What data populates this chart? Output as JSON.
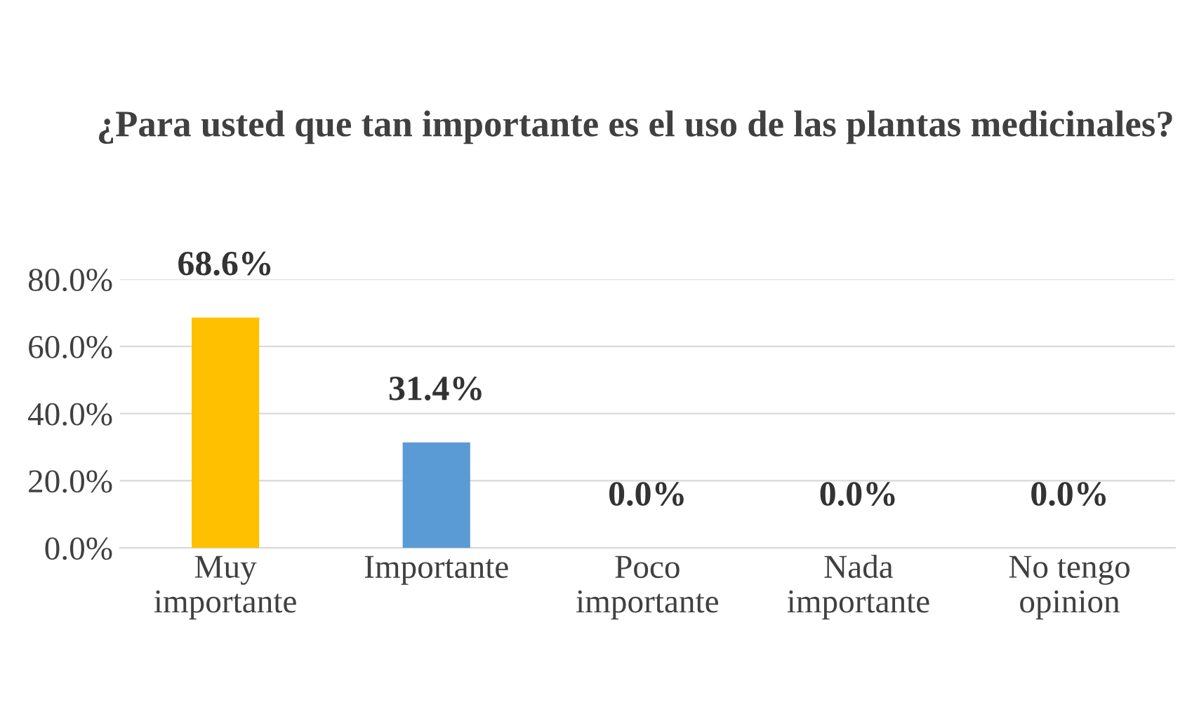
{
  "chart_data": {
    "type": "bar",
    "title": "¿Para usted que tan importante es el uso de las plantas medicinales?",
    "categories": [
      "Muy\nimportante",
      "Importante",
      "Poco\nimportante",
      "Nada\nimportante",
      "No tengo\nopinion"
    ],
    "values": [
      68.6,
      31.4,
      0.0,
      0.0,
      0.0
    ],
    "colors": [
      "#ffc000",
      "#5b9bd5",
      "#5b9bd5",
      "#5b9bd5",
      "#5b9bd5"
    ],
    "value_labels": [
      "68.6%",
      "31.4%",
      "0.0%",
      "0.0%",
      "0.0%"
    ],
    "ylim": [
      0,
      80
    ],
    "yticks": [
      {
        "value": 0,
        "label": "0.0%"
      },
      {
        "value": 20,
        "label": "20.0%"
      },
      {
        "value": 40,
        "label": "40.0%"
      },
      {
        "value": 60,
        "label": "60.0%"
      },
      {
        "value": 80,
        "label": "80.0%"
      }
    ],
    "grid": "y"
  }
}
